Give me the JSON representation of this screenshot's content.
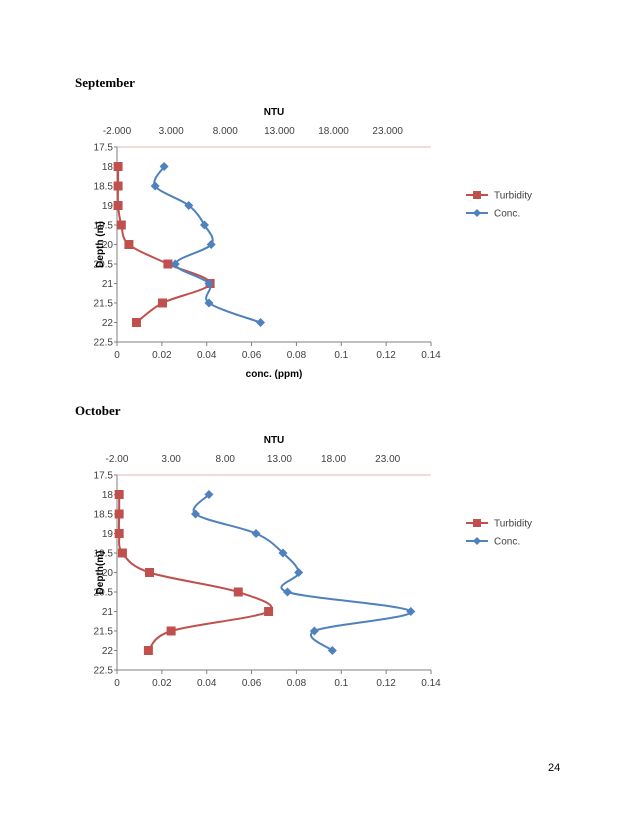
{
  "page_number": "24",
  "colors": {
    "turbidity": "#c0504d",
    "conc": "#4f81bd",
    "grid": "#e8b4b4",
    "axis": "#7f7f7f",
    "text": "#404040"
  },
  "chart_data": [
    {
      "section_title": "September",
      "type": "scatter",
      "title": "NTU",
      "xlabel": "conc. (ppm)",
      "ylabel": "Depth (m)",
      "secondary_x_ticks": [
        "-2.000",
        "3.000",
        "8.000",
        "13.000",
        "18.000",
        "23.000"
      ],
      "primary_x_ticks": [
        "0",
        "0.02",
        "0.04",
        "0.06",
        "0.08",
        "0.1",
        "0.12",
        "0.14"
      ],
      "y_ticks": [
        "17.5",
        "18",
        "18.5",
        "19",
        "19.5",
        "20",
        "20.5",
        "21",
        "21.5",
        "22",
        "22.5"
      ],
      "xlim": [
        0,
        0.14
      ],
      "ylim": [
        22.5,
        17.5
      ],
      "secondary_xlim": [
        -2,
        27
      ],
      "legend_position": "right",
      "series": [
        {
          "name": "Turbidity",
          "axis": "secondary",
          "marker": "square",
          "y": [
            18,
            18.5,
            19,
            19.5,
            20,
            20.5,
            21,
            21.5,
            22
          ],
          "x": [
            -1.9,
            -1.9,
            -1.9,
            -1.6,
            -0.9,
            2.7,
            6.6,
            2.2,
            -0.2
          ]
        },
        {
          "name": "Conc.",
          "axis": "primary",
          "marker": "diamond",
          "y": [
            18,
            18.5,
            19,
            19.5,
            20,
            20.5,
            21,
            21.5,
            22
          ],
          "x": [
            0.021,
            0.017,
            0.032,
            0.039,
            0.042,
            0.026,
            0.041,
            0.041,
            0.064
          ]
        }
      ]
    },
    {
      "section_title": "October",
      "type": "scatter",
      "title": "NTU",
      "xlabel": "",
      "ylabel": "Depth(m)",
      "secondary_x_ticks": [
        "-2.00",
        "3.00",
        "8.00",
        "13.00",
        "18.00",
        "23.00"
      ],
      "primary_x_ticks": [
        "0",
        "0.02",
        "0.04",
        "0.06",
        "0.08",
        "0.1",
        "0.12",
        "0.14"
      ],
      "y_ticks": [
        "17.5",
        "18",
        "18.5",
        "19",
        "19.5",
        "20",
        "20.5",
        "21",
        "21.5",
        "22",
        "22.5"
      ],
      "xlim": [
        0,
        0.14
      ],
      "ylim": [
        22.5,
        17.5
      ],
      "secondary_xlim": [
        -2,
        27
      ],
      "legend_position": "right",
      "series": [
        {
          "name": "Turbidity",
          "axis": "secondary",
          "marker": "square",
          "y": [
            18,
            18.5,
            19,
            19.5,
            20,
            20.5,
            21,
            21.5,
            22
          ],
          "x": [
            -1.8,
            -1.8,
            -1.8,
            -1.5,
            1.0,
            9.2,
            12.0,
            3.0,
            0.9
          ]
        },
        {
          "name": "Conc.",
          "axis": "primary",
          "marker": "diamond",
          "y": [
            18,
            18.5,
            19,
            19.5,
            20,
            20.5,
            21,
            21.5,
            22
          ],
          "x": [
            0.041,
            0.035,
            0.062,
            0.074,
            0.081,
            0.076,
            0.131,
            0.088,
            0.096
          ]
        }
      ]
    }
  ]
}
